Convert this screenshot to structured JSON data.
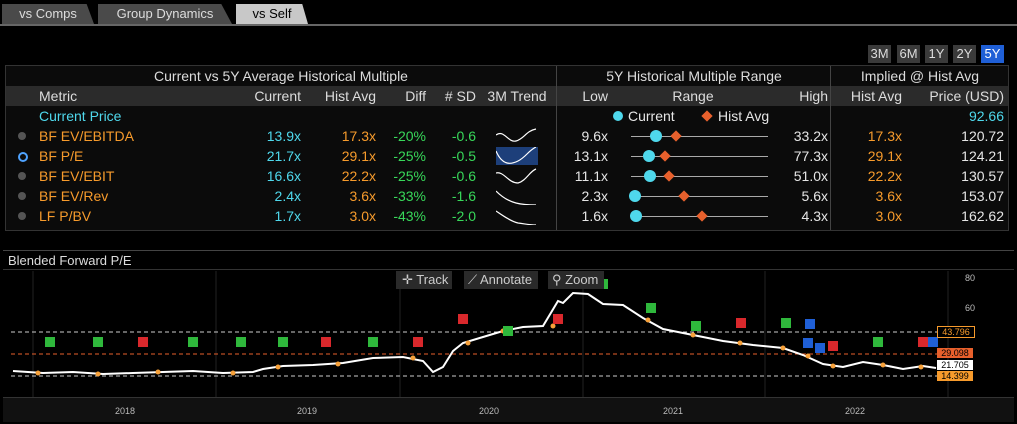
{
  "tabs": [
    {
      "label": "vs Comps",
      "active": false
    },
    {
      "label": "Group Dynamics",
      "active": false
    },
    {
      "label": "vs Self",
      "active": true
    }
  ],
  "ranges": [
    {
      "label": "3M",
      "active": false
    },
    {
      "label": "6M",
      "active": false
    },
    {
      "label": "1Y",
      "active": false
    },
    {
      "label": "2Y",
      "active": false
    },
    {
      "label": "5Y",
      "active": true
    }
  ],
  "table": {
    "group_current_vs_avg": "Current vs 5Y Average Historical Multiple",
    "group_range": "5Y Historical Multiple Range",
    "group_implied": "Implied @ Hist Avg",
    "col_metric": "Metric",
    "col_current": "Current",
    "col_hist_avg": "Hist Avg",
    "col_diff": "Diff",
    "col_sd": "# SD",
    "col_trend": "3M Trend",
    "col_low": "Low",
    "col_range": "Range",
    "col_high": "High",
    "col_implied_avg": "Hist Avg",
    "col_price": "Price (USD)",
    "current_price_label": "Current Price",
    "current_price_value": "92.66",
    "legend_current": "Current",
    "legend_hist_avg": "Hist Avg",
    "rows": [
      {
        "metric": "BF EV/EBITDA",
        "current": "13.9x",
        "hist_avg": "17.3x",
        "diff": "-20%",
        "sd": "-0.6",
        "low": "9.6x",
        "high": "33.2x",
        "implied_avg": "17.3x",
        "price": "120.72",
        "current_pos": 0.18,
        "avg_pos": 0.33,
        "selected": false
      },
      {
        "metric": "BF P/E",
        "current": "21.7x",
        "hist_avg": "29.1x",
        "diff": "-25%",
        "sd": "-0.5",
        "low": "13.1x",
        "high": "77.3x",
        "implied_avg": "29.1x",
        "price": "124.21",
        "current_pos": 0.13,
        "avg_pos": 0.25,
        "selected": true
      },
      {
        "metric": "BF EV/EBIT",
        "current": "16.6x",
        "hist_avg": "22.2x",
        "diff": "-25%",
        "sd": "-0.6",
        "low": "11.1x",
        "high": "51.0x",
        "implied_avg": "22.2x",
        "price": "130.57",
        "current_pos": 0.14,
        "avg_pos": 0.28,
        "selected": false
      },
      {
        "metric": "BF EV/Rev",
        "current": "2.4x",
        "hist_avg": "3.6x",
        "diff": "-33%",
        "sd": "-1.6",
        "low": "2.3x",
        "high": "5.6x",
        "implied_avg": "3.6x",
        "price": "153.07",
        "current_pos": 0.03,
        "avg_pos": 0.39,
        "selected": false
      },
      {
        "metric": "LF P/BV",
        "current": "1.7x",
        "hist_avg": "3.0x",
        "diff": "-43%",
        "sd": "-2.0",
        "low": "1.6x",
        "high": "4.3x",
        "implied_avg": "3.0x",
        "price": "162.62",
        "current_pos": 0.04,
        "avg_pos": 0.52,
        "selected": false
      }
    ]
  },
  "chart": {
    "title": "Blended Forward P/E",
    "tool_track": "Track",
    "tool_annotate": "Annotate",
    "tool_zoom": "Zoom",
    "years": [
      "2018",
      "2019",
      "2020",
      "2021",
      "2022"
    ],
    "y_ticks": [
      "80",
      "60"
    ],
    "value_labels": [
      {
        "text": "43.796",
        "color": "#f79b2c"
      },
      {
        "text": "29.098",
        "color": "#f79b2c"
      },
      {
        "text": "21.705",
        "color": "#ffffff"
      },
      {
        "text": "14.399",
        "color": "#f79b2c"
      }
    ],
    "colors": {
      "line": "#ffffff",
      "mean": "#e8602c",
      "band": "#cccccc",
      "earn_flag": "#2fb83c",
      "div_flag": "#d9282c",
      "other_flag": "#1f5fd6"
    }
  }
}
